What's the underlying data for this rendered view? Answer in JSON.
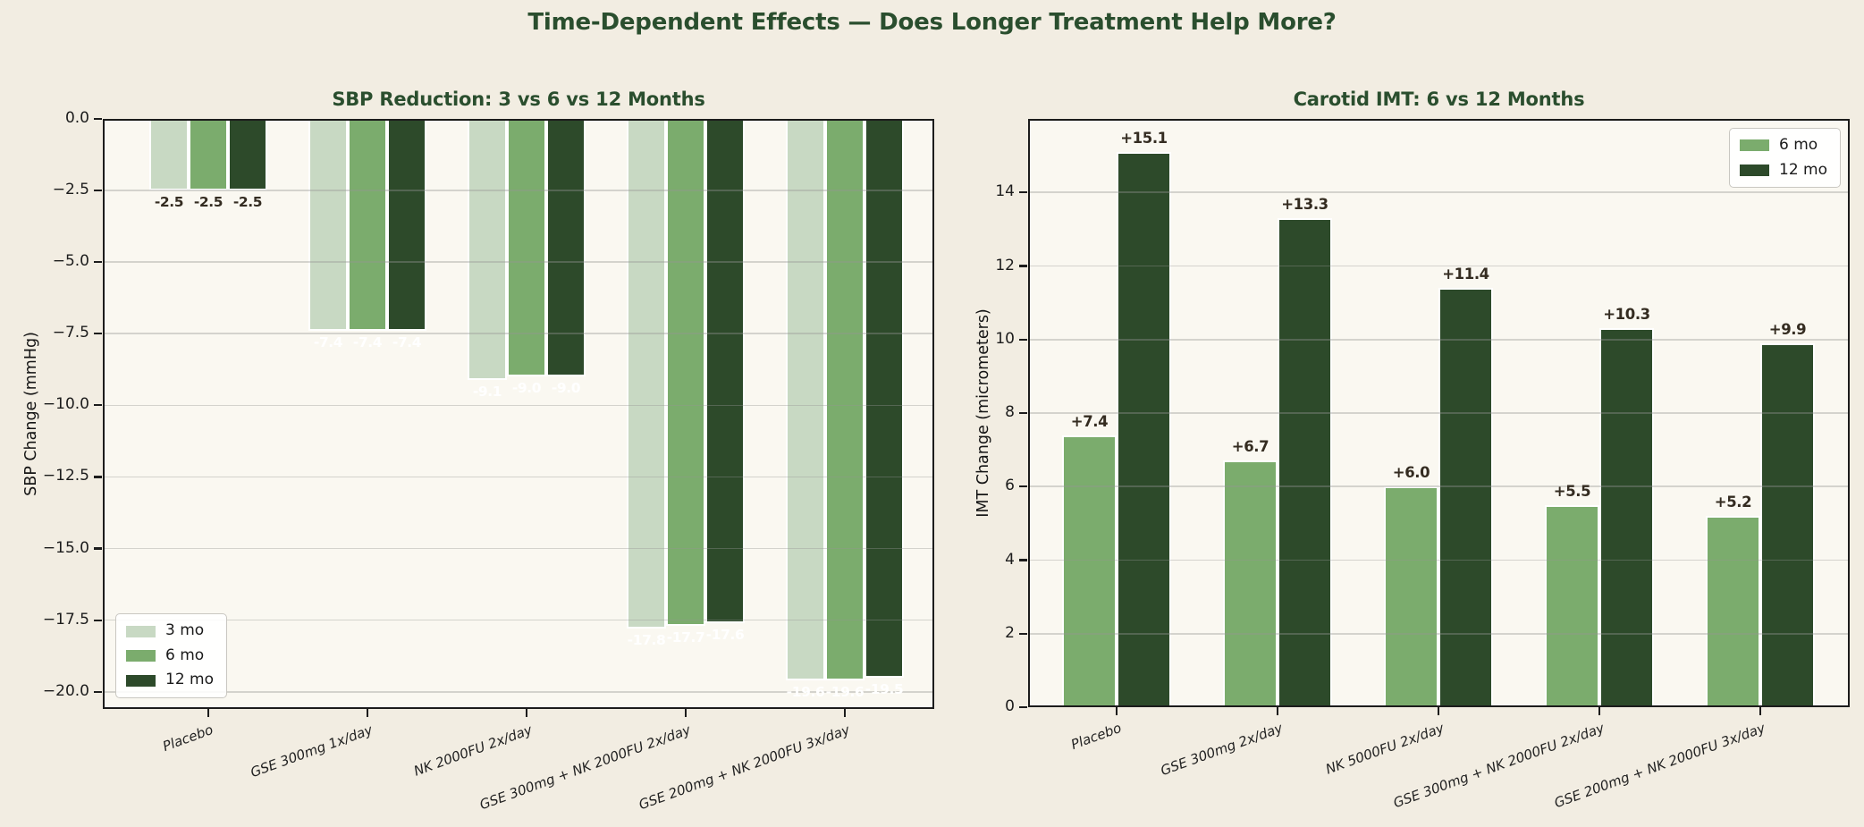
{
  "figure": {
    "title": "Time-Dependent Effects — Does Longer Treatment Help More?",
    "title_color": "#2a4e2e",
    "background_color": "#f2ede2",
    "plot_background_color": "#faf8f1",
    "spine_color": "#1c1c1c"
  },
  "chart_data": [
    {
      "type": "bar",
      "title": "SBP Reduction: 3 vs 6 vs 12 Months",
      "ylabel": "SBP Change (mmHg)",
      "xlabel": "",
      "ylim": [
        -20.6,
        0
      ],
      "grid": true,
      "legend_position": "lower left",
      "yticks": [
        0,
        -2.5,
        -5,
        -7.5,
        -10,
        -12.5,
        -15,
        -17.5,
        -20
      ],
      "ytick_labels": [
        "0.0",
        "−2.5",
        "−5.0",
        "−7.5",
        "−10.0",
        "−12.5",
        "−15.0",
        "−17.5",
        "−20.0"
      ],
      "categories": [
        "Placebo",
        "GSE 300mg 1x/day",
        "NK 2000FU 2x/day",
        "GSE 300mg + NK 2000FU 2x/day",
        "GSE 200mg + NK 2000FU 3x/day"
      ],
      "series": [
        {
          "name": "3 mo",
          "color": "#c8d9c3",
          "values": [
            -2.5,
            -7.4,
            -9.1,
            -17.8,
            -19.6
          ],
          "labels": [
            "-2.5",
            "-7.4",
            "-9.1",
            "-17.8",
            "-19.6"
          ]
        },
        {
          "name": "6 mo",
          "color": "#7bac6d",
          "values": [
            -2.5,
            -7.4,
            -9.0,
            -17.7,
            -19.6
          ],
          "labels": [
            "-2.5",
            "-7.4",
            "-9.0",
            "-17.7",
            "-19.6"
          ]
        },
        {
          "name": "12 mo",
          "color": "#2d4a2a",
          "values": [
            -2.5,
            -7.4,
            -9.0,
            -17.6,
            -19.5
          ],
          "labels": [
            "-2.5",
            "-7.4",
            "-9.0",
            "-17.6",
            "-19.5"
          ]
        }
      ],
      "bar_label_colors_by_group": [
        "#342c21",
        "#ffffff",
        "#ffffff",
        "#ffffff",
        "#ffffff"
      ]
    },
    {
      "type": "bar",
      "title": "Carotid IMT: 6 vs 12 Months",
      "ylabel": "IMT Change (micrometers)",
      "xlabel": "",
      "ylim": [
        0,
        16
      ],
      "grid": true,
      "legend_position": "upper right",
      "yticks": [
        0,
        2,
        4,
        6,
        8,
        10,
        12,
        14
      ],
      "ytick_labels": [
        "0",
        "2",
        "4",
        "6",
        "8",
        "10",
        "12",
        "14"
      ],
      "categories": [
        "Placebo",
        "GSE 300mg 2x/day",
        "NK 5000FU 2x/day",
        "GSE 300mg + NK 2000FU 2x/day",
        "GSE 200mg + NK 2000FU 3x/day"
      ],
      "series": [
        {
          "name": "6 mo",
          "color": "#7bac6d",
          "values": [
            7.4,
            6.7,
            6.0,
            5.5,
            5.2
          ],
          "labels": [
            "+7.4",
            "+6.7",
            "+6.0",
            "+5.5",
            "+5.2"
          ]
        },
        {
          "name": "12 mo",
          "color": "#2d4a2a",
          "values": [
            15.1,
            13.3,
            11.4,
            10.3,
            9.9
          ],
          "labels": [
            "+15.1",
            "+13.3",
            "+11.4",
            "+10.3",
            "+9.9"
          ]
        }
      ],
      "bar_label_colors_by_group": [
        "#342c21",
        "#342c21",
        "#342c21",
        "#342c21",
        "#342c21"
      ]
    }
  ]
}
